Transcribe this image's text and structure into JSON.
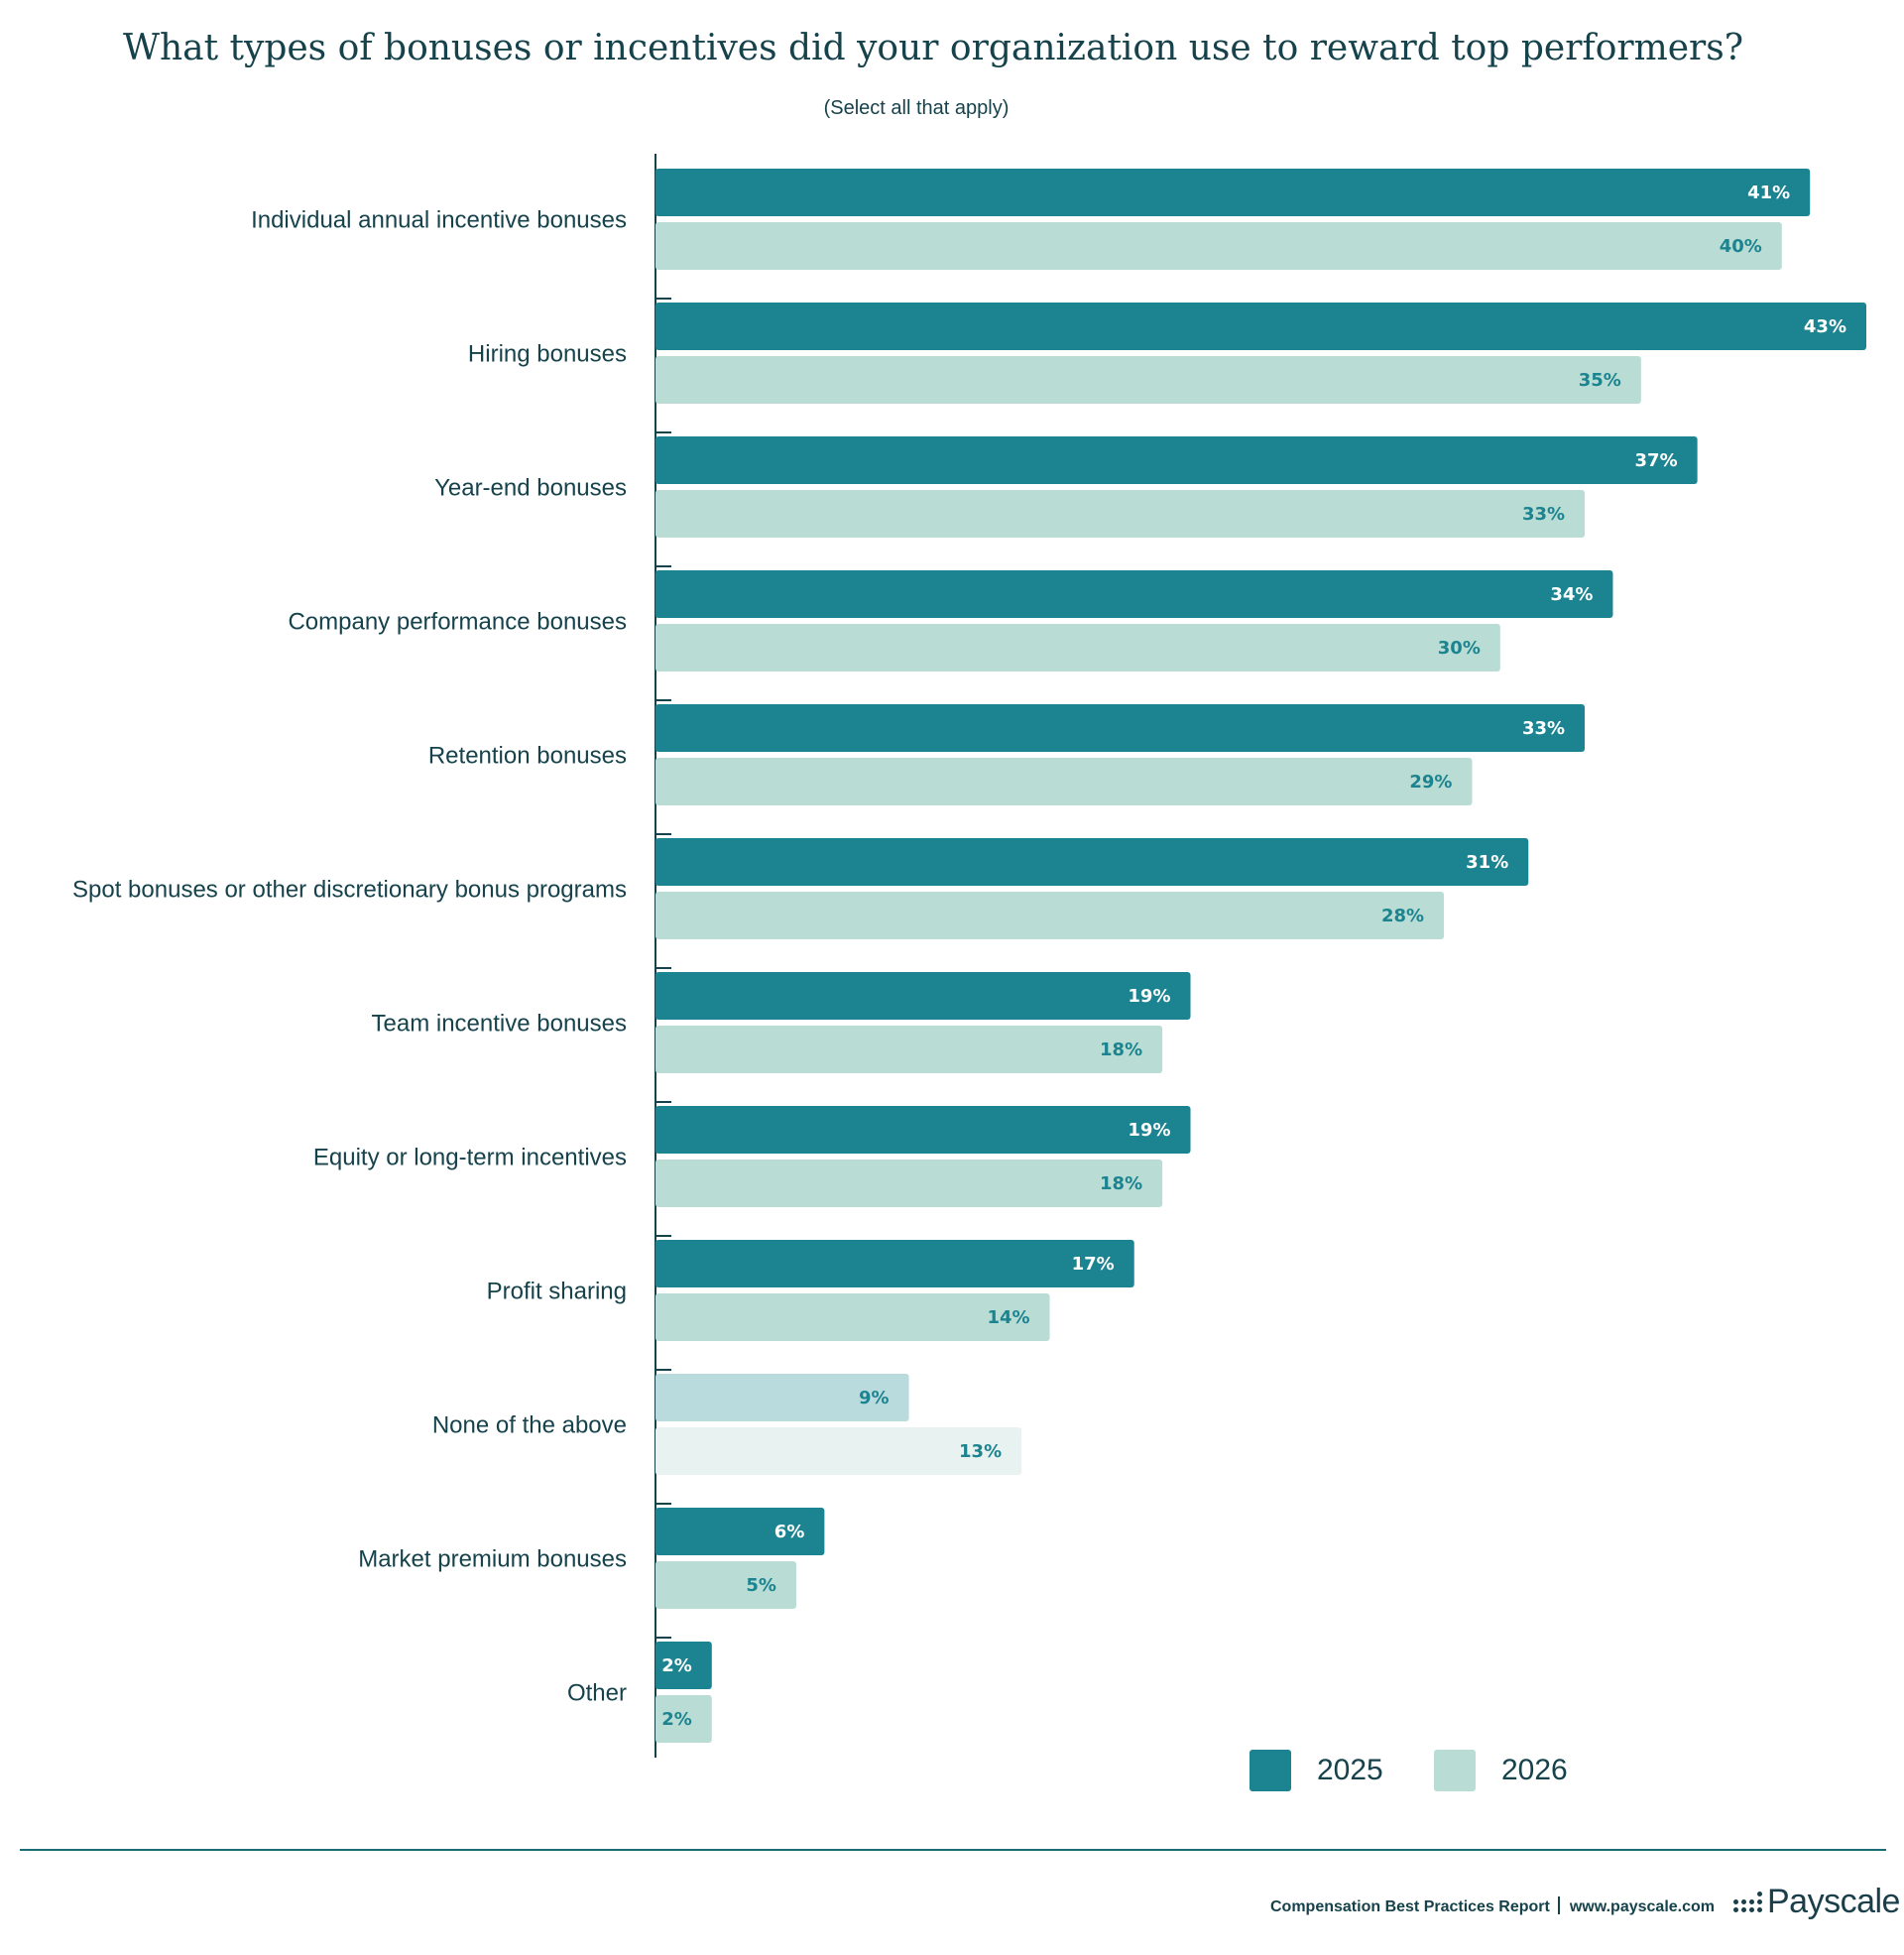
{
  "chart_data": {
    "type": "bar",
    "orientation": "horizontal",
    "title": "What types of bonuses or incentives did your organization use to reward top performers?",
    "subtitle": "(Select all that apply)",
    "categories": [
      "Individual annual incentive bonuses",
      "Hiring bonuses",
      "Year-end bonuses",
      "Company performance bonuses",
      "Retention bonuses",
      "Spot bonuses or other discretionary bonus programs",
      "Team incentive bonuses",
      "Equity or long-term incentives",
      "Profit sharing",
      "None of the above",
      "Market premium bonuses",
      "Other"
    ],
    "series": [
      {
        "name": "2025",
        "values": [
          41,
          43,
          37,
          34,
          33,
          31,
          19,
          19,
          17,
          9,
          6,
          2
        ],
        "labels": [
          "41%",
          "43%",
          "37%",
          "34%",
          "33%",
          "31%",
          "19%",
          "19%",
          "17%",
          "9%",
          "6%",
          "2%"
        ],
        "color": "#1b8490",
        "label_color": "#ffffff"
      },
      {
        "name": "2026",
        "values": [
          40,
          35,
          33,
          30,
          29,
          28,
          18,
          18,
          14,
          13,
          5,
          2
        ],
        "labels": [
          "40%",
          "35%",
          "33%",
          "30%",
          "29%",
          "28%",
          "18%",
          "18%",
          "14%",
          "13%",
          "5%",
          "2%"
        ],
        "color": "#b9ddd4",
        "label_color": "#1b8490"
      }
    ],
    "highlight_colors": {
      "None of the above": [
        "#badbde",
        "#e8f3f1"
      ]
    },
    "xlim": [
      0,
      43
    ],
    "grid": false,
    "legend": "bottom-right"
  },
  "footer": {
    "report": "Compensation Best Practices Report",
    "url": "www.payscale.com",
    "brand": "Payscale"
  }
}
